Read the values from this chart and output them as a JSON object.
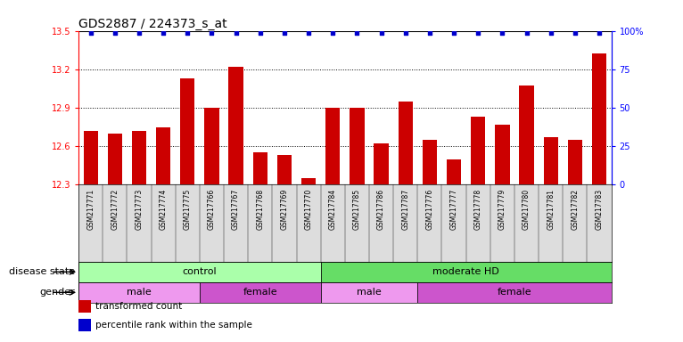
{
  "title": "GDS2887 / 224373_s_at",
  "samples": [
    "GSM217771",
    "GSM217772",
    "GSM217773",
    "GSM217774",
    "GSM217775",
    "GSM217766",
    "GSM217767",
    "GSM217768",
    "GSM217769",
    "GSM217770",
    "GSM217784",
    "GSM217785",
    "GSM217786",
    "GSM217787",
    "GSM217776",
    "GSM217777",
    "GSM217778",
    "GSM217779",
    "GSM217780",
    "GSM217781",
    "GSM217782",
    "GSM217783"
  ],
  "bar_values": [
    12.72,
    12.7,
    12.72,
    12.75,
    13.13,
    12.9,
    13.22,
    12.55,
    12.53,
    12.35,
    12.9,
    12.9,
    12.62,
    12.95,
    12.65,
    12.5,
    12.83,
    12.77,
    13.07,
    12.67,
    12.65,
    13.32
  ],
  "ylim_left": [
    12.3,
    13.5
  ],
  "ylim_right": [
    0,
    100
  ],
  "yticks_left": [
    12.3,
    12.6,
    12.9,
    13.2,
    13.5
  ],
  "ytick_labels_left": [
    "12.3",
    "12.6",
    "12.9",
    "13.2",
    "13.5"
  ],
  "yticks_right": [
    0,
    25,
    50,
    75,
    100
  ],
  "ytick_labels_right": [
    "0",
    "25",
    "50",
    "75",
    "100%"
  ],
  "bar_color": "#cc0000",
  "percentile_color": "#0000cc",
  "background_color": "#ffffff",
  "disease_state_groups": [
    {
      "label": "control",
      "start": 0,
      "end": 10,
      "color": "#aaffaa"
    },
    {
      "label": "moderate HD",
      "start": 10,
      "end": 22,
      "color": "#66dd66"
    }
  ],
  "gender_groups": [
    {
      "label": "male",
      "start": 0,
      "end": 5,
      "color": "#ee99ee"
    },
    {
      "label": "female",
      "start": 5,
      "end": 10,
      "color": "#cc55cc"
    },
    {
      "label": "male",
      "start": 10,
      "end": 14,
      "color": "#ee99ee"
    },
    {
      "label": "female",
      "start": 14,
      "end": 22,
      "color": "#cc55cc"
    }
  ],
  "disease_label": "disease state",
  "gender_label": "gender",
  "legend_items": [
    {
      "label": "transformed count",
      "color": "#cc0000"
    },
    {
      "label": "percentile rank within the sample",
      "color": "#0000cc"
    }
  ],
  "title_fontsize": 10,
  "tick_fontsize": 7,
  "strip_fontsize": 8,
  "label_fontsize": 8
}
